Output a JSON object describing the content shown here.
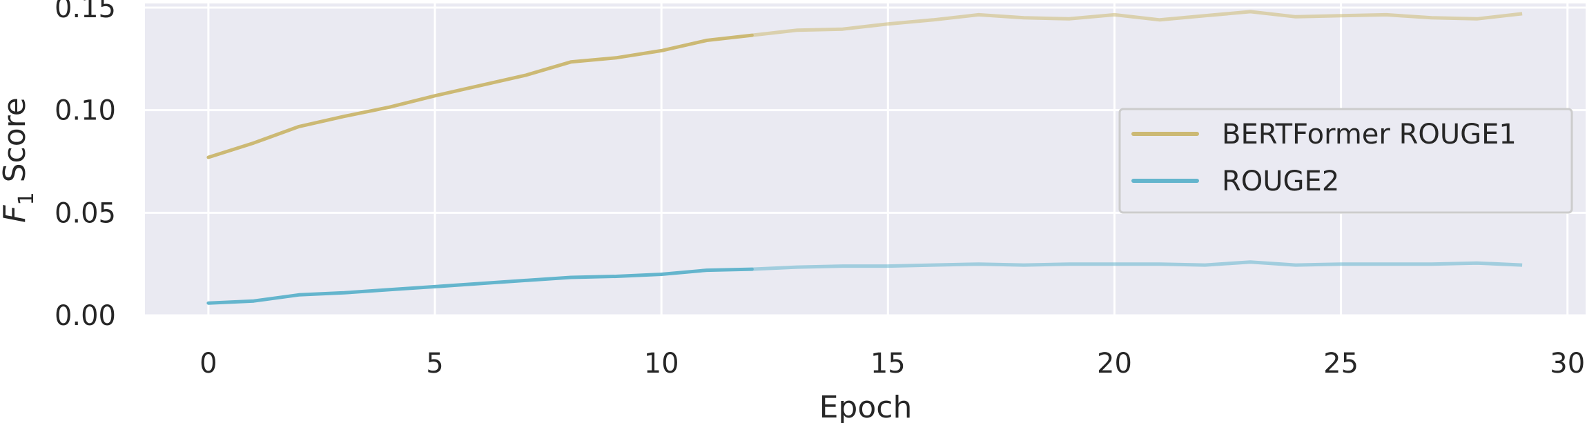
{
  "chart_data": {
    "type": "line",
    "xlabel": "Epoch",
    "ylabel": "F",
    "ylabel_subscript": "1",
    "ylabel_suffix": " Score",
    "xlim": [
      -1.4,
      30.4
    ],
    "ylim": [
      0.0,
      0.152
    ],
    "xticks": [
      0,
      5,
      10,
      15,
      20,
      25,
      30
    ],
    "yticks": [
      0.0,
      0.05,
      0.1,
      0.15
    ],
    "xtick_labels": [
      "0",
      "5",
      "10",
      "15",
      "20",
      "25",
      "30"
    ],
    "ytick_labels": [
      "0.00",
      "0.05",
      "0.10",
      "0.15"
    ],
    "grid": true,
    "legend_position": "center-right",
    "highlight_until_epoch": 12,
    "x": [
      0,
      1,
      2,
      3,
      4,
      5,
      6,
      7,
      8,
      9,
      10,
      11,
      12,
      13,
      14,
      15,
      16,
      17,
      18,
      19,
      20,
      21,
      22,
      23,
      24,
      25,
      26,
      27,
      28,
      29
    ],
    "series": [
      {
        "name": "BERTFormer ROUGE1",
        "color": "#ccb974",
        "values": [
          0.077,
          0.084,
          0.092,
          0.097,
          0.1015,
          0.107,
          0.112,
          0.117,
          0.1235,
          0.1255,
          0.129,
          0.134,
          0.1365,
          0.139,
          0.1395,
          0.142,
          0.144,
          0.1465,
          0.145,
          0.1445,
          0.1465,
          0.144,
          0.146,
          0.148,
          0.1455,
          0.146,
          0.1465,
          0.145,
          0.1445,
          0.147
        ]
      },
      {
        "name": "ROUGE2",
        "color": "#64b5cd",
        "values": [
          0.006,
          0.007,
          0.01,
          0.011,
          0.0125,
          0.014,
          0.0155,
          0.017,
          0.0185,
          0.019,
          0.02,
          0.022,
          0.0225,
          0.0235,
          0.024,
          0.024,
          0.0245,
          0.025,
          0.0245,
          0.025,
          0.025,
          0.025,
          0.0245,
          0.026,
          0.0245,
          0.025,
          0.025,
          0.025,
          0.0255,
          0.0245
        ]
      }
    ]
  }
}
